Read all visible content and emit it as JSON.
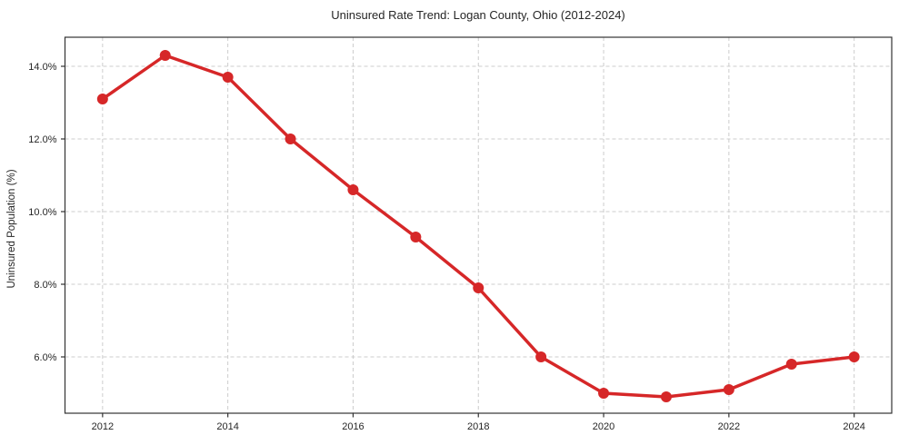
{
  "page": {
    "background_color": "#ffffff",
    "text_color": "#262626"
  },
  "chart_data": {
    "type": "line",
    "title": "Uninsured Rate Trend: Logan County, Ohio (2012-2024)",
    "xlabel": "",
    "ylabel": "Uninsured Population (%)",
    "x": [
      2012,
      2013,
      2014,
      2015,
      2016,
      2017,
      2018,
      2019,
      2020,
      2021,
      2022,
      2023,
      2024
    ],
    "values": [
      13.1,
      14.3,
      13.7,
      12.0,
      10.6,
      9.3,
      7.9,
      6.0,
      5.0,
      4.9,
      5.1,
      5.8,
      6.0
    ],
    "xticks": [
      2012,
      2014,
      2016,
      2018,
      2020,
      2022,
      2024
    ],
    "xtick_labels": [
      "2012",
      "2014",
      "2016",
      "2018",
      "2020",
      "2022",
      "2024"
    ],
    "yticks": [
      6,
      8,
      10,
      12,
      14
    ],
    "ytick_labels": [
      "6.0%",
      "8.0%",
      "10.0%",
      "12.0%",
      "14.0%"
    ],
    "xlim": [
      2011.4,
      2024.6
    ],
    "ylim": [
      4.45,
      14.8
    ],
    "grid": true,
    "grid_style": "dashed",
    "legend": "none",
    "line_color": "#d62728",
    "marker_color": "#d62728",
    "grid_color": "#cccccc",
    "spine_color": "#333333",
    "tick_color": "#333333"
  }
}
